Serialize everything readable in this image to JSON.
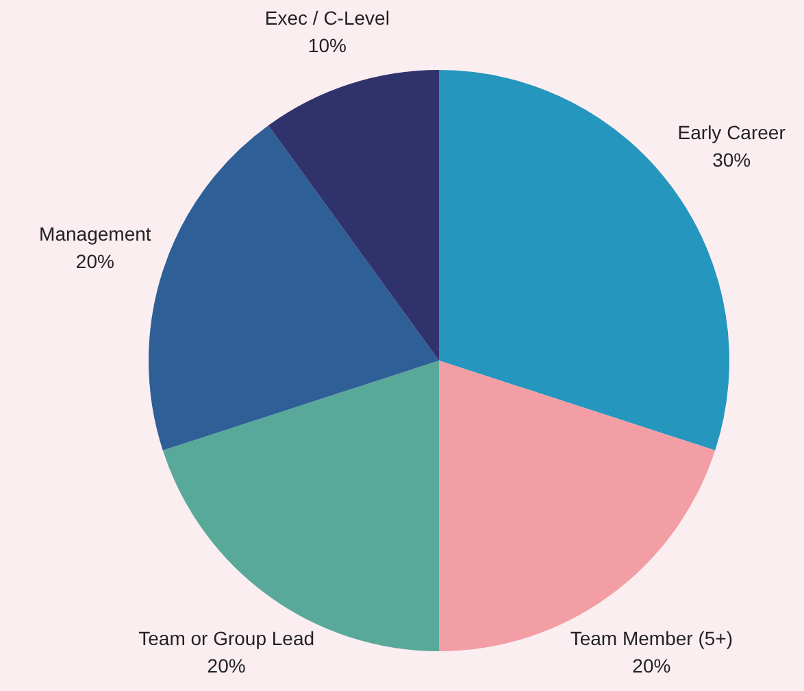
{
  "chart_data": {
    "type": "pie",
    "categories": [
      "Early Career",
      "Team Member (5+)",
      "Team or Group Lead",
      "Management",
      "Exec / C-Level"
    ],
    "values": [
      30,
      20,
      20,
      20,
      10
    ],
    "value_labels": [
      "30%",
      "20%",
      "20%",
      "20%",
      "10%"
    ],
    "colors": [
      "#2596be",
      "#f29ea4",
      "#58a99a",
      "#2e5f96",
      "#30336b"
    ],
    "legend": false
  }
}
